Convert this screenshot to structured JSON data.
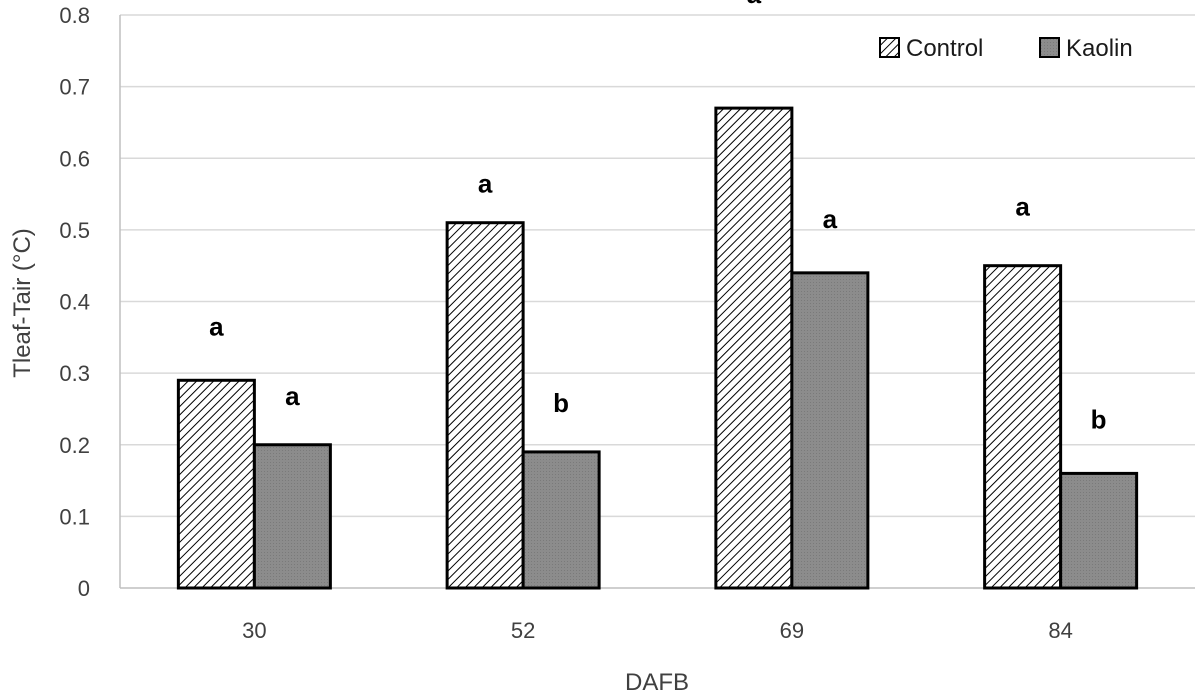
{
  "chart_data": {
    "type": "bar",
    "title": "",
    "xlabel": "DAFB",
    "ylabel": "Tleaf-Tair (°C)",
    "categories": [
      "30",
      "52",
      "69",
      "84"
    ],
    "ylim": [
      0,
      0.8
    ],
    "yticks": [
      "0",
      "0.1",
      "0.2",
      "0.3",
      "0.4",
      "0.5",
      "0.6",
      "0.7",
      "0.8"
    ],
    "grid": true,
    "legend_position": "top-right",
    "series": [
      {
        "name": "Control",
        "values": [
          0.29,
          0.51,
          0.67,
          0.45
        ],
        "annotations": [
          "a",
          "a",
          "a",
          "a"
        ],
        "pattern": "diagonal-hatch",
        "color": "#ffffff"
      },
      {
        "name": "Kaolin",
        "values": [
          0.2,
          0.19,
          0.44,
          0.16
        ],
        "annotations": [
          "a",
          "b",
          "a",
          "b"
        ],
        "pattern": "solid",
        "color": "#808080"
      }
    ]
  }
}
